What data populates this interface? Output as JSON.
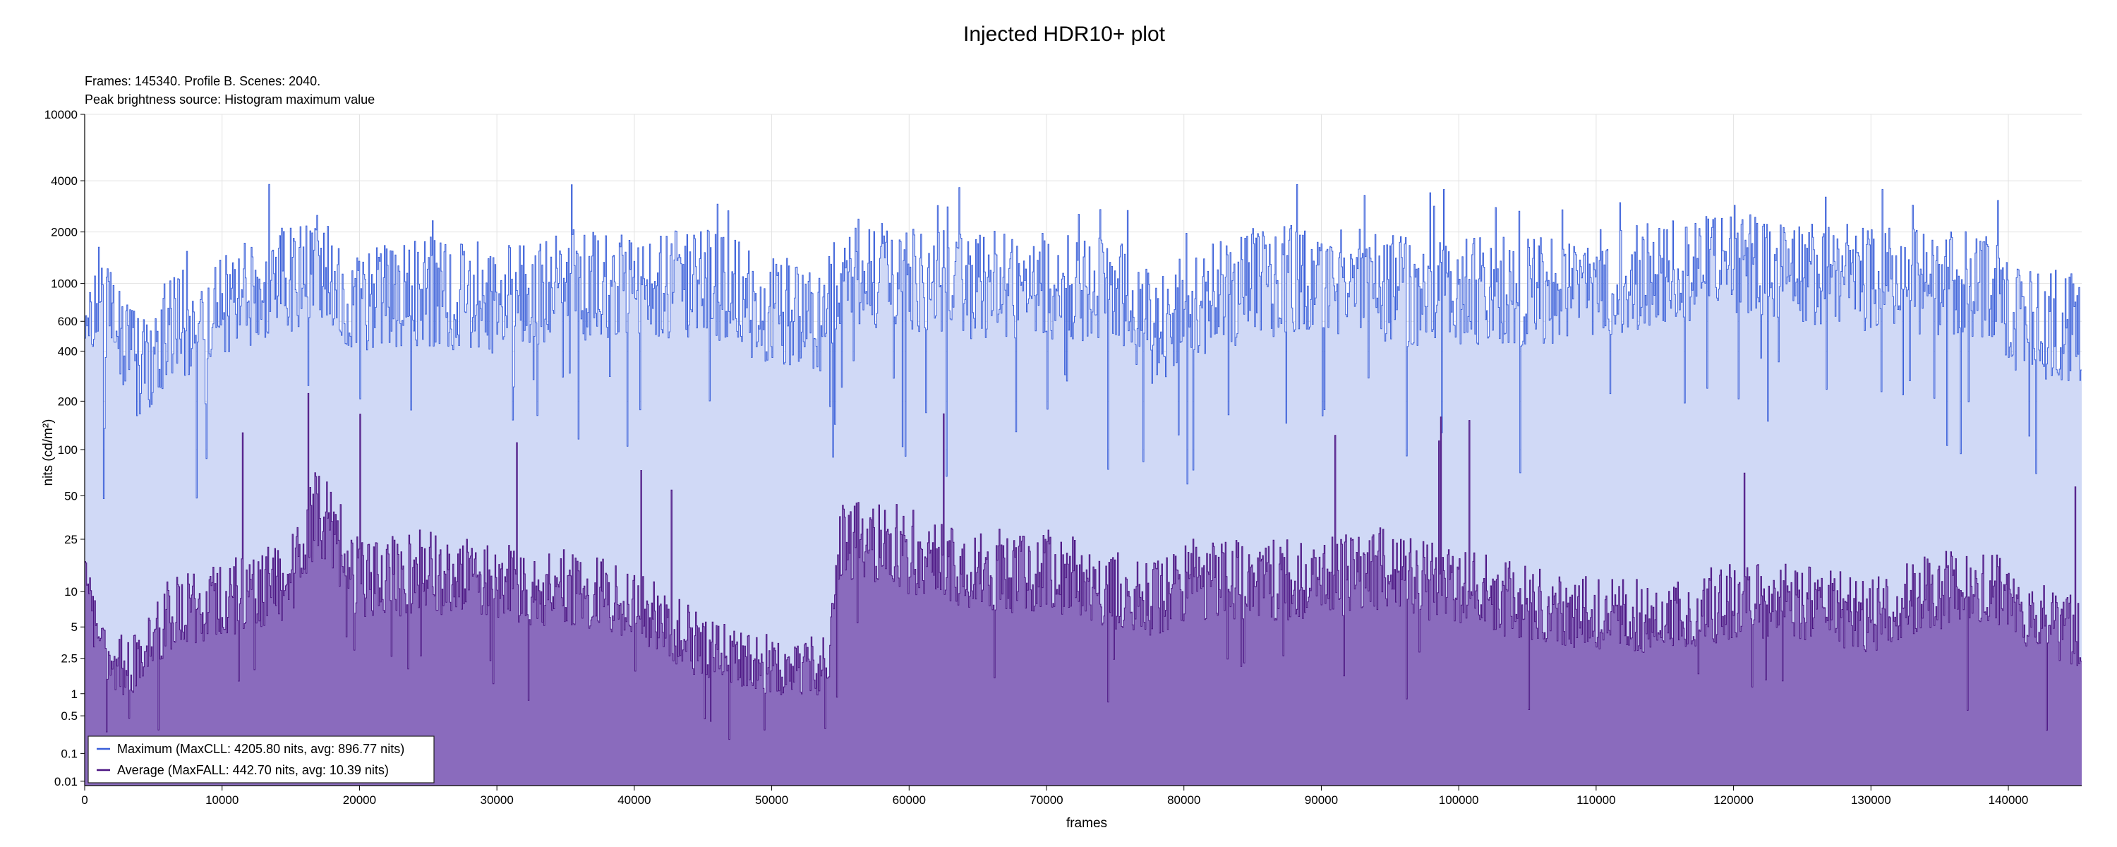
{
  "chart_data": {
    "type": "area",
    "title": "Injected HDR10+ plot",
    "subtitle_lines": [
      "Frames: 145340. Profile B. Scenes: 2040.",
      "Peak brightness source: Histogram maximum value"
    ],
    "xlabel": "frames",
    "ylabel": "nits (cd/m²)",
    "xlim": [
      0,
      145340
    ],
    "ylim": [
      0.005,
      10000
    ],
    "y_scale": "pq",
    "x_ticks": [
      0,
      10000,
      20000,
      30000,
      40000,
      50000,
      60000,
      70000,
      80000,
      90000,
      100000,
      110000,
      120000,
      130000,
      140000
    ],
    "y_ticks": [
      0.01,
      0.1,
      0.5,
      1,
      2.5,
      5,
      10,
      25,
      50,
      100,
      200,
      400,
      600,
      1000,
      2000,
      4000,
      10000
    ],
    "y_tick_labels": [
      "0.01",
      "0.1",
      "0.5",
      "1",
      "2.5",
      "5",
      "10",
      "25",
      "50",
      "100",
      "200",
      "400",
      "600",
      "1000",
      "2000",
      "4000",
      "10000"
    ],
    "grid": true,
    "legend_position": "bottom-left",
    "series": [
      {
        "name": "Maximum (MaxCLL: 4205.80 nits, avg: 896.77 nits)",
        "color": "#3a5fd9",
        "fill": "#d0d9f6",
        "max": 4205.8,
        "avg": 896.77,
        "profile_x": [
          0,
          2000,
          4000,
          6000,
          10000,
          15000,
          17000,
          20000,
          25000,
          30000,
          35000,
          40000,
          45000,
          50000,
          54000,
          55000,
          60000,
          65000,
          70000,
          75000,
          78000,
          80000,
          85000,
          90000,
          95000,
          100000,
          105000,
          110000,
          115000,
          120000,
          125000,
          130000,
          135000,
          139000,
          140000,
          145340
        ],
        "profile_y": [
          900,
          700,
          300,
          500,
          800,
          1100,
          1200,
          800,
          900,
          800,
          1000,
          900,
          1000,
          700,
          600,
          1200,
          1000,
          1000,
          1000,
          900,
          500,
          700,
          1000,
          1100,
          900,
          900,
          900,
          1000,
          1100,
          1400,
          1200,
          1000,
          1000,
          900,
          600,
          550
        ]
      },
      {
        "name": "Average (MaxFALL: 442.70 nits, avg: 10.39 nits)",
        "color": "#4b1482",
        "fill": "#8a6bbd",
        "max": 442.7,
        "avg": 10.39,
        "profile_x": [
          0,
          2000,
          4000,
          6000,
          10000,
          15000,
          17000,
          20000,
          25000,
          30000,
          35000,
          40000,
          45000,
          50000,
          54000,
          55000,
          60000,
          65000,
          70000,
          75000,
          78000,
          80000,
          85000,
          90000,
          95000,
          100000,
          105000,
          110000,
          115000,
          120000,
          125000,
          130000,
          135000,
          139000,
          140000,
          145340
        ],
        "profile_y": [
          10,
          2,
          2,
          6,
          8,
          12,
          40,
          12,
          14,
          12,
          10,
          8,
          3,
          2,
          2,
          25,
          20,
          14,
          14,
          10,
          8,
          12,
          12,
          12,
          15,
          10,
          8,
          6,
          6,
          8,
          8,
          6,
          10,
          10,
          8,
          4
        ]
      }
    ]
  }
}
